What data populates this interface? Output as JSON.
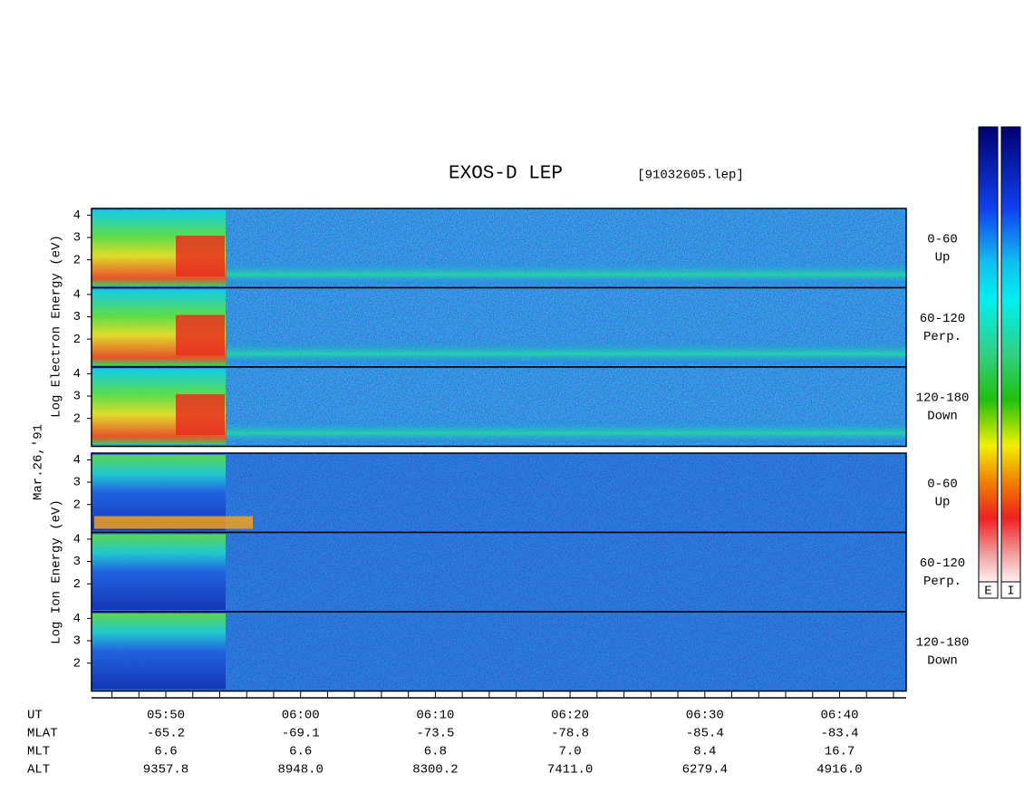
{
  "title": "EXOS-D LEP",
  "file": "[91032605.lep]",
  "date": "Mar.26,'91",
  "electron": {
    "axis_label": "Log Electron Energy (eV)",
    "panels": [
      {
        "range": "0-60",
        "direction": "Up"
      },
      {
        "range": "60-120",
        "direction": "Perp."
      },
      {
        "range": "120-180",
        "direction": "Down"
      }
    ]
  },
  "ion": {
    "axis_label": "Log Ion Energy (eV)",
    "panels": [
      {
        "range": "0-60",
        "direction": "Up"
      },
      {
        "range": "60-120",
        "direction": "Perp."
      },
      {
        "range": "120-180",
        "direction": "Down"
      }
    ]
  },
  "ylim": [
    0.75,
    4.3
  ],
  "yticks": [
    2,
    3,
    4
  ],
  "footer": {
    "row_labels": [
      "UT",
      "MLAT",
      "MLT",
      "ALT"
    ],
    "UT": [
      "05:50",
      "06:00",
      "06:10",
      "06:20",
      "06:30",
      "06:40"
    ],
    "MLAT": [
      "-65.2",
      "-69.1",
      "-73.5",
      "-78.8",
      "-85.4",
      "-83.4"
    ],
    "MLT": [
      "6.6",
      "6.6",
      "6.8",
      "7.0",
      "8.4",
      "16.7"
    ],
    "ALT": [
      "9357.8",
      "8948.0",
      "8300.2",
      "7411.0",
      "6279.4",
      "4916.0"
    ]
  },
  "colorbars": [
    "E",
    "I"
  ]
}
